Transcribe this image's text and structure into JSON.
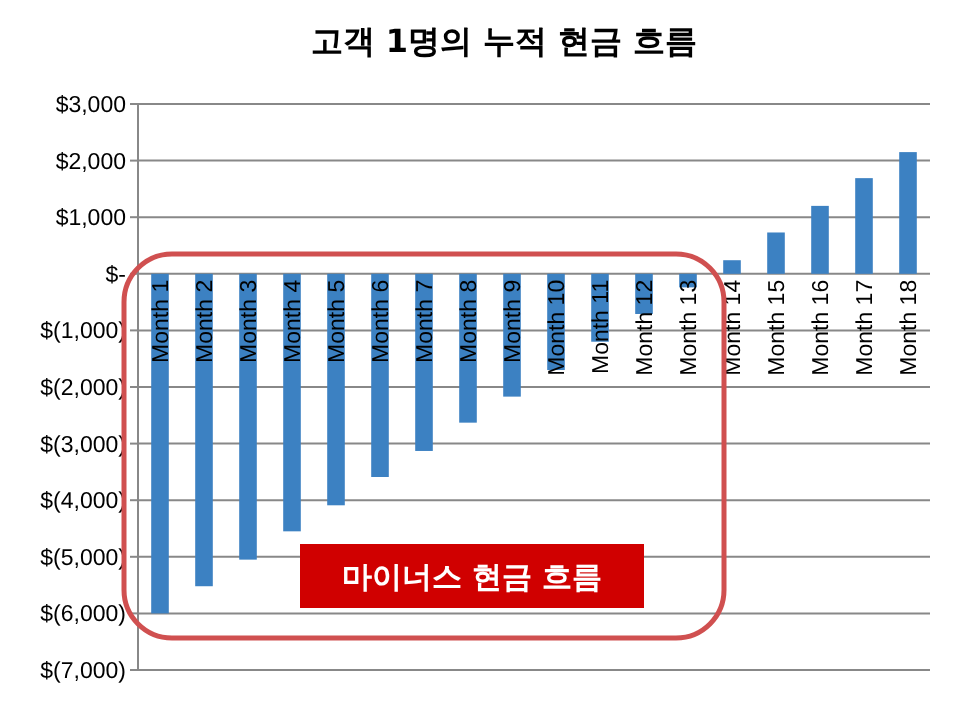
{
  "chart_data": {
    "type": "bar",
    "title": "고객 1명의 누적 현금 흐름",
    "categories": [
      "Month 1",
      "Month 2",
      "Month 3",
      "Month 4",
      "Month 5",
      "Month 6",
      "Month 7",
      "Month 8",
      "Month 9",
      "Month 10",
      "Month 11",
      "Month 12",
      "Month 13",
      "Month 14",
      "Month 15",
      "Month 16",
      "Month 17",
      "Month 18"
    ],
    "values": [
      -6000,
      -5520,
      -5050,
      -4550,
      -4090,
      -3590,
      -3130,
      -2630,
      -2170,
      -1700,
      -1200,
      -710,
      -240,
      240,
      730,
      1200,
      1690,
      2150
    ],
    "color": "#3c81c2",
    "ylim": [
      -7000,
      3000
    ],
    "yticks": [
      {
        "value": 3000,
        "label": "$3,000"
      },
      {
        "value": 2000,
        "label": "$2,000"
      },
      {
        "value": 1000,
        "label": "$1,000"
      },
      {
        "value": 0,
        "label": "$-"
      },
      {
        "value": -1000,
        "label": "$(1,000)"
      },
      {
        "value": -2000,
        "label": "$(2,000)"
      },
      {
        "value": -3000,
        "label": "$(3,000)"
      },
      {
        "value": -4000,
        "label": "$(4,000)"
      },
      {
        "value": -5000,
        "label": "$(5,000)"
      },
      {
        "value": -6000,
        "label": "$(6,000)"
      },
      {
        "value": -7000,
        "label": "$(7,000)"
      }
    ],
    "grid": "y",
    "annotations": [
      "마이너스 현금 흐름"
    ]
  }
}
